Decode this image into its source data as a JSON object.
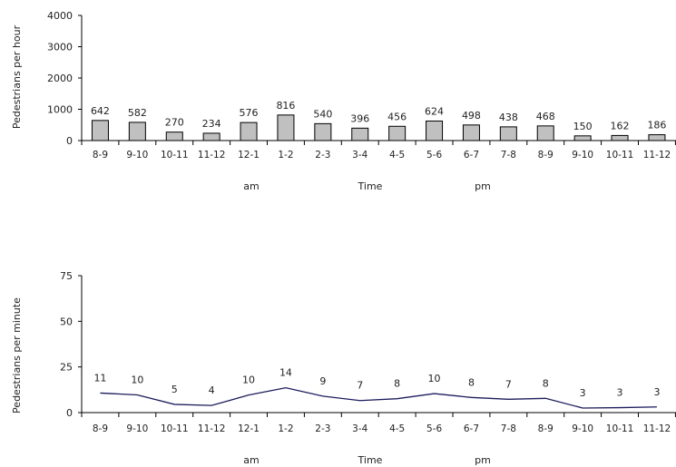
{
  "chart_data": [
    {
      "type": "bar",
      "categories": [
        "8-9",
        "9-10",
        "10-11",
        "11-12",
        "12-1",
        "1-2",
        "2-3",
        "3-4",
        "4-5",
        "5-6",
        "6-7",
        "7-8",
        "8-9",
        "9-10",
        "10-11",
        "11-12"
      ],
      "values": [
        642,
        582,
        270,
        234,
        576,
        816,
        540,
        396,
        456,
        624,
        498,
        438,
        468,
        150,
        162,
        186
      ],
      "data_labels": [
        "642",
        "582",
        "270",
        "234",
        "576",
        "816",
        "540",
        "396",
        "456",
        "624",
        "498",
        "438",
        "468",
        "150",
        "162",
        "186"
      ],
      "ylabel": "Pedestrians per hour",
      "xlabel": "Time",
      "x_group_labels": [
        "am",
        "pm"
      ],
      "ylim": [
        0,
        4000
      ],
      "yticks": [
        "0",
        "1000",
        "2000",
        "3000",
        "4000"
      ],
      "bar_color": "#c0c0c0",
      "grid": false
    },
    {
      "type": "line",
      "categories": [
        "8-9",
        "9-10",
        "10-11",
        "11-12",
        "12-1",
        "1-2",
        "2-3",
        "3-4",
        "4-5",
        "5-6",
        "6-7",
        "7-8",
        "8-9",
        "9-10",
        "10-11",
        "11-12"
      ],
      "values": [
        10.7,
        9.7,
        4.5,
        3.9,
        9.6,
        13.6,
        9,
        6.6,
        7.6,
        10.4,
        8.3,
        7.3,
        7.8,
        2.5,
        2.7,
        3.1
      ],
      "data_labels": [
        "11",
        "10",
        "5",
        "4",
        "10",
        "14",
        "9",
        "7",
        "8",
        "10",
        "8",
        "7",
        "8",
        "3",
        "3",
        "3"
      ],
      "ylabel": "Pedestrians per minute",
      "xlabel": "Time",
      "x_group_labels": [
        "am",
        "pm"
      ],
      "ylim": [
        0,
        75
      ],
      "yticks": [
        "0",
        "25",
        "50",
        "75"
      ],
      "line_color": "#1c1c5c",
      "grid": false
    }
  ]
}
